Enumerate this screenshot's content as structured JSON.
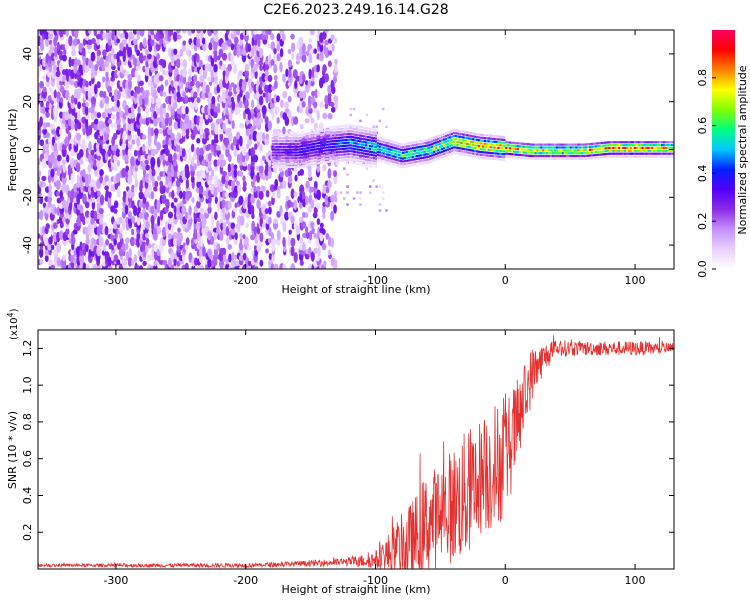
{
  "figure": {
    "title": "C2E6.2023.249.16.14.G28"
  },
  "chart_data": [
    {
      "type": "heatmap",
      "xlabel": "Height of straight line (km)",
      "ylabel": "Frequency (Hz)",
      "xlim": [
        -360,
        130
      ],
      "ylim": [
        -50,
        50
      ],
      "xticks": [
        -300,
        -200,
        -100,
        0,
        100
      ],
      "yticks": [
        -40,
        -20,
        0,
        20,
        40
      ],
      "colorbar": {
        "label": "Normalized spectral amplitude",
        "range": [
          0,
          1
        ],
        "ticks": [
          0.0,
          0.2,
          0.4,
          0.6,
          0.8
        ],
        "colormap": [
          "#ffffff",
          "#e8d0ff",
          "#c690ff",
          "#8a2be2",
          "#5500ff",
          "#0020ff",
          "#00c8ff",
          "#00ff80",
          "#80ff00",
          "#ffff00",
          "#ff8000",
          "#ff0000",
          "#ff0066"
        ]
      },
      "ridge": [
        {
          "x": -175,
          "y": 0,
          "amp": 0.3
        },
        {
          "x": -160,
          "y": 0,
          "amp": 0.35
        },
        {
          "x": -140,
          "y": 2,
          "amp": 0.35
        },
        {
          "x": -120,
          "y": 3,
          "amp": 0.45
        },
        {
          "x": -100,
          "y": 1,
          "amp": 0.5
        },
        {
          "x": -80,
          "y": -2,
          "amp": 0.55
        },
        {
          "x": -60,
          "y": 0,
          "amp": 0.6
        },
        {
          "x": -40,
          "y": 4,
          "amp": 0.7
        },
        {
          "x": -20,
          "y": 2,
          "amp": 0.8
        },
        {
          "x": 0,
          "y": 1,
          "amp": 0.8
        },
        {
          "x": 20,
          "y": 0,
          "amp": 0.75
        },
        {
          "x": 40,
          "y": 0,
          "amp": 0.7
        },
        {
          "x": 60,
          "y": 0,
          "amp": 0.75
        },
        {
          "x": 80,
          "y": 1,
          "amp": 0.85
        },
        {
          "x": 100,
          "y": 1,
          "amp": 0.9
        },
        {
          "x": 120,
          "y": 1,
          "amp": 0.75
        }
      ]
    },
    {
      "type": "line",
      "xlabel": "Height of straight line (km)",
      "ylabel": "SNR (10 * v/v)",
      "y_multiplier": "(x10^4)",
      "y_multiplier_base": "(x10",
      "y_multiplier_exp": "4",
      "y_multiplier_close": ")",
      "xlim": [
        -360,
        130
      ],
      "ylim": [
        0,
        1.3
      ],
      "xticks": [
        -300,
        -200,
        -100,
        0,
        100
      ],
      "yticks": [
        0.2,
        0.4,
        0.6,
        0.8,
        1.0,
        1.2
      ],
      "ytick_labels": [
        "0.2",
        "0.4",
        "0.6",
        "0.8",
        "1.0",
        "1.2"
      ],
      "color": "#e53030",
      "envelope": {
        "x": [
          -360,
          -200,
          -150,
          -120,
          -100,
          -80,
          -70,
          -60,
          -50,
          -40,
          -30,
          -20,
          -10,
          0,
          10,
          20,
          30,
          40,
          60,
          80,
          100,
          130
        ],
        "base": [
          0.02,
          0.02,
          0.03,
          0.04,
          0.05,
          0.1,
          0.15,
          0.25,
          0.3,
          0.35,
          0.4,
          0.5,
          0.55,
          0.6,
          0.8,
          1.05,
          1.15,
          1.2,
          1.2,
          1.2,
          1.2,
          1.2
        ],
        "spread": [
          0.01,
          0.015,
          0.02,
          0.03,
          0.06,
          0.25,
          0.3,
          0.35,
          0.35,
          0.4,
          0.45,
          0.4,
          0.45,
          0.4,
          0.3,
          0.2,
          0.1,
          0.06,
          0.05,
          0.05,
          0.05,
          0.04
        ]
      }
    }
  ]
}
